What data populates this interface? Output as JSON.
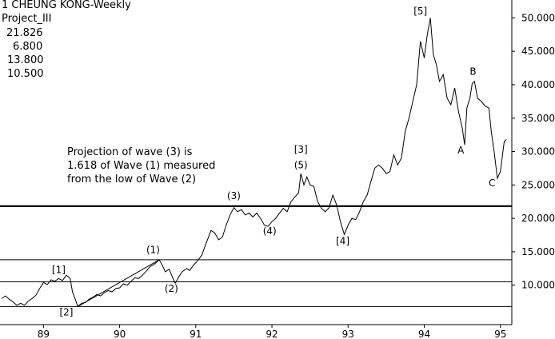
{
  "header": {
    "title": "1 CHEUNG KONG-Weekly",
    "subtitle": "Project_III",
    "levels": [
      "21.826",
      "6.800",
      "13.800",
      "10.500"
    ]
  },
  "note": {
    "lines": [
      "Projection of wave (3) is",
      "1.618 of Wave (1) measured",
      "from the low of Wave (2)"
    ]
  },
  "chart_data": {
    "type": "line",
    "title": "1 CHEUNG KONG-Weekly",
    "xlabel": "",
    "ylabel": "",
    "x_ticks": [
      "89",
      "90",
      "91",
      "92",
      "93",
      "94",
      "95"
    ],
    "y_ticks": [
      "10.000",
      "15.000",
      "20.000",
      "25.000",
      "30.000",
      "35.000",
      "40.000",
      "45.000",
      "50.000"
    ],
    "xlim": [
      88.45,
      95.15
    ],
    "ylim": [
      4.1,
      52.2
    ],
    "grid": false,
    "horizontal_levels": [
      {
        "label": "21.826",
        "value": 21.826,
        "style": "thick"
      },
      {
        "label": "13.800",
        "value": 13.8,
        "style": "thin"
      },
      {
        "label": "10.500",
        "value": 10.5,
        "style": "thin"
      },
      {
        "label": "6.800",
        "value": 6.8,
        "style": "thin"
      }
    ],
    "trendline": {
      "from": [
        89.45,
        6.8
      ],
      "to": [
        90.52,
        13.8
      ]
    },
    "series": [
      {
        "points": [
          [
            88.45,
            8.0
          ],
          [
            88.5,
            8.4
          ],
          [
            88.55,
            7.9
          ],
          [
            88.6,
            7.5
          ],
          [
            88.65,
            7.0
          ],
          [
            88.7,
            7.3
          ],
          [
            88.75,
            7.0
          ],
          [
            88.8,
            7.6
          ],
          [
            88.85,
            8.0
          ],
          [
            88.9,
            8.5
          ],
          [
            88.95,
            9.5
          ],
          [
            89.0,
            10.4
          ],
          [
            89.05,
            10.1
          ],
          [
            89.1,
            10.8
          ],
          [
            89.15,
            10.6
          ],
          [
            89.2,
            11.0
          ],
          [
            89.25,
            10.7
          ],
          [
            89.3,
            11.5
          ],
          [
            89.35,
            11.0
          ],
          [
            89.38,
            9.0
          ],
          [
            89.42,
            7.8
          ],
          [
            89.45,
            6.8
          ],
          [
            89.5,
            7.3
          ],
          [
            89.55,
            7.4
          ],
          [
            89.6,
            7.9
          ],
          [
            89.65,
            8.2
          ],
          [
            89.7,
            8.6
          ],
          [
            89.75,
            8.4
          ],
          [
            89.8,
            8.9
          ],
          [
            89.85,
            9.2
          ],
          [
            89.9,
            9.0
          ],
          [
            89.95,
            9.5
          ],
          [
            90.0,
            9.6
          ],
          [
            90.05,
            10.2
          ],
          [
            90.1,
            10.0
          ],
          [
            90.15,
            10.6
          ],
          [
            90.2,
            11.1
          ],
          [
            90.25,
            11.0
          ],
          [
            90.3,
            11.5
          ],
          [
            90.35,
            12.1
          ],
          [
            90.4,
            12.8
          ],
          [
            90.45,
            13.1
          ],
          [
            90.52,
            13.8
          ],
          [
            90.56,
            13.0
          ],
          [
            90.6,
            12.0
          ],
          [
            90.65,
            12.4
          ],
          [
            90.7,
            11.0
          ],
          [
            90.73,
            10.3
          ],
          [
            90.78,
            11.3
          ],
          [
            90.82,
            12.0
          ],
          [
            90.88,
            12.5
          ],
          [
            90.92,
            12.2
          ],
          [
            90.97,
            13.0
          ],
          [
            91.02,
            13.6
          ],
          [
            91.08,
            14.5
          ],
          [
            91.12,
            15.8
          ],
          [
            91.16,
            17.0
          ],
          [
            91.2,
            18.2
          ],
          [
            91.25,
            17.8
          ],
          [
            91.3,
            16.8
          ],
          [
            91.35,
            17.2
          ],
          [
            91.4,
            19.0
          ],
          [
            91.45,
            20.5
          ],
          [
            91.5,
            21.6
          ],
          [
            91.55,
            21.0
          ],
          [
            91.6,
            21.3
          ],
          [
            91.65,
            20.5
          ],
          [
            91.7,
            20.8
          ],
          [
            91.75,
            20.2
          ],
          [
            91.8,
            20.8
          ],
          [
            91.85,
            20.0
          ],
          [
            91.9,
            19.0
          ],
          [
            91.95,
            18.8
          ],
          [
            92.0,
            19.5
          ],
          [
            92.05,
            20.0
          ],
          [
            92.1,
            20.8
          ],
          [
            92.15,
            21.5
          ],
          [
            92.2,
            21.0
          ],
          [
            92.25,
            22.5
          ],
          [
            92.3,
            23.2
          ],
          [
            92.35,
            23.8
          ],
          [
            92.38,
            26.7
          ],
          [
            92.42,
            25.0
          ],
          [
            92.46,
            26.2
          ],
          [
            92.5,
            25.0
          ],
          [
            92.55,
            24.8
          ],
          [
            92.6,
            22.5
          ],
          [
            92.65,
            21.5
          ],
          [
            92.7,
            21.0
          ],
          [
            92.75,
            21.6
          ],
          [
            92.8,
            23.5
          ],
          [
            92.85,
            22.0
          ],
          [
            92.9,
            19.5
          ],
          [
            92.95,
            17.6
          ],
          [
            93.0,
            19.0
          ],
          [
            93.05,
            20.0
          ],
          [
            93.1,
            19.8
          ],
          [
            93.15,
            21.0
          ],
          [
            93.2,
            22.5
          ],
          [
            93.25,
            23.5
          ],
          [
            93.3,
            25.5
          ],
          [
            93.35,
            27.5
          ],
          [
            93.4,
            28.0
          ],
          [
            93.45,
            27.5
          ],
          [
            93.5,
            26.7
          ],
          [
            93.55,
            27.0
          ],
          [
            93.6,
            29.5
          ],
          [
            93.65,
            28.0
          ],
          [
            93.7,
            29.0
          ],
          [
            93.75,
            33.0
          ],
          [
            93.8,
            35.0
          ],
          [
            93.85,
            37.5
          ],
          [
            93.9,
            40.0
          ],
          [
            93.95,
            46.5
          ],
          [
            94.0,
            44.0
          ],
          [
            94.04,
            47.5
          ],
          [
            94.08,
            50.0
          ],
          [
            94.12,
            44.5
          ],
          [
            94.16,
            43.0
          ],
          [
            94.2,
            40.5
          ],
          [
            94.25,
            41.5
          ],
          [
            94.3,
            38.0
          ],
          [
            94.35,
            37.0
          ],
          [
            94.4,
            39.5
          ],
          [
            94.45,
            36.0
          ],
          [
            94.5,
            33.5
          ],
          [
            94.53,
            31.0
          ],
          [
            94.56,
            36.5
          ],
          [
            94.6,
            38.0
          ],
          [
            94.63,
            40.2
          ],
          [
            94.66,
            40.5
          ],
          [
            94.7,
            38.0
          ],
          [
            94.75,
            37.5
          ],
          [
            94.8,
            36.8
          ],
          [
            94.85,
            36.5
          ],
          [
            94.88,
            33.0
          ],
          [
            94.92,
            29.8
          ],
          [
            94.96,
            26.0
          ],
          [
            95.0,
            27.0
          ],
          [
            95.05,
            31.5
          ],
          [
            95.08,
            31.8
          ]
        ]
      }
    ],
    "annotations": [
      {
        "label": "[1]",
        "x": 89.2,
        "y": 11.8
      },
      {
        "label": "[2]",
        "x": 89.3,
        "y": 5.5
      },
      {
        "label": "(1)",
        "x": 90.44,
        "y": 14.8
      },
      {
        "label": "(2)",
        "x": 90.68,
        "y": 9.0
      },
      {
        "label": "(3)",
        "x": 91.5,
        "y": 22.9
      },
      {
        "label": "(4)",
        "x": 91.97,
        "y": 17.6
      },
      {
        "label": "[3]",
        "x": 92.38,
        "y": 29.8
      },
      {
        "label": "(5)",
        "x": 92.38,
        "y": 27.5
      },
      {
        "label": "[4]",
        "x": 92.93,
        "y": 16.1
      },
      {
        "label": "[5]",
        "x": 93.95,
        "y": 50.5
      },
      {
        "label": "A",
        "x": 94.48,
        "y": 29.7
      },
      {
        "label": "B",
        "x": 94.64,
        "y": 41.5
      },
      {
        "label": "C",
        "x": 94.89,
        "y": 24.8
      }
    ]
  }
}
